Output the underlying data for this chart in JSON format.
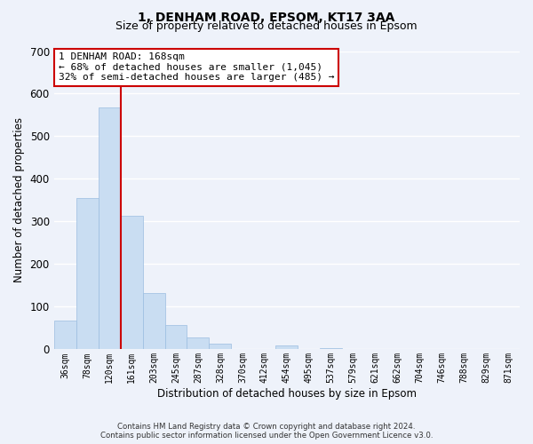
{
  "title": "1, DENHAM ROAD, EPSOM, KT17 3AA",
  "subtitle": "Size of property relative to detached houses in Epsom",
  "xlabel": "Distribution of detached houses by size in Epsom",
  "ylabel": "Number of detached properties",
  "bar_labels": [
    "36sqm",
    "78sqm",
    "120sqm",
    "161sqm",
    "203sqm",
    "245sqm",
    "287sqm",
    "328sqm",
    "370sqm",
    "412sqm",
    "454sqm",
    "495sqm",
    "537sqm",
    "579sqm",
    "621sqm",
    "662sqm",
    "704sqm",
    "746sqm",
    "788sqm",
    "829sqm",
    "871sqm"
  ],
  "bar_values": [
    68,
    355,
    567,
    313,
    133,
    58,
    27,
    13,
    0,
    0,
    10,
    0,
    3,
    0,
    0,
    0,
    0,
    0,
    0,
    0,
    0
  ],
  "bar_color": "#c9ddf2",
  "bar_edge_color": "#9bbde0",
  "vline_x_index": 3,
  "vline_color": "#cc0000",
  "ylim": [
    0,
    700
  ],
  "yticks": [
    0,
    100,
    200,
    300,
    400,
    500,
    600,
    700
  ],
  "annotation_title": "1 DENHAM ROAD: 168sqm",
  "annotation_line1": "← 68% of detached houses are smaller (1,045)",
  "annotation_line2": "32% of semi-detached houses are larger (485) →",
  "annotation_box_color": "#ffffff",
  "annotation_box_edge": "#cc0000",
  "footer_line1": "Contains HM Land Registry data © Crown copyright and database right 2024.",
  "footer_line2": "Contains public sector information licensed under the Open Government Licence v3.0.",
  "background_color": "#eef2fa",
  "grid_color": "#ffffff",
  "title_fontsize": 10,
  "subtitle_fontsize": 9
}
